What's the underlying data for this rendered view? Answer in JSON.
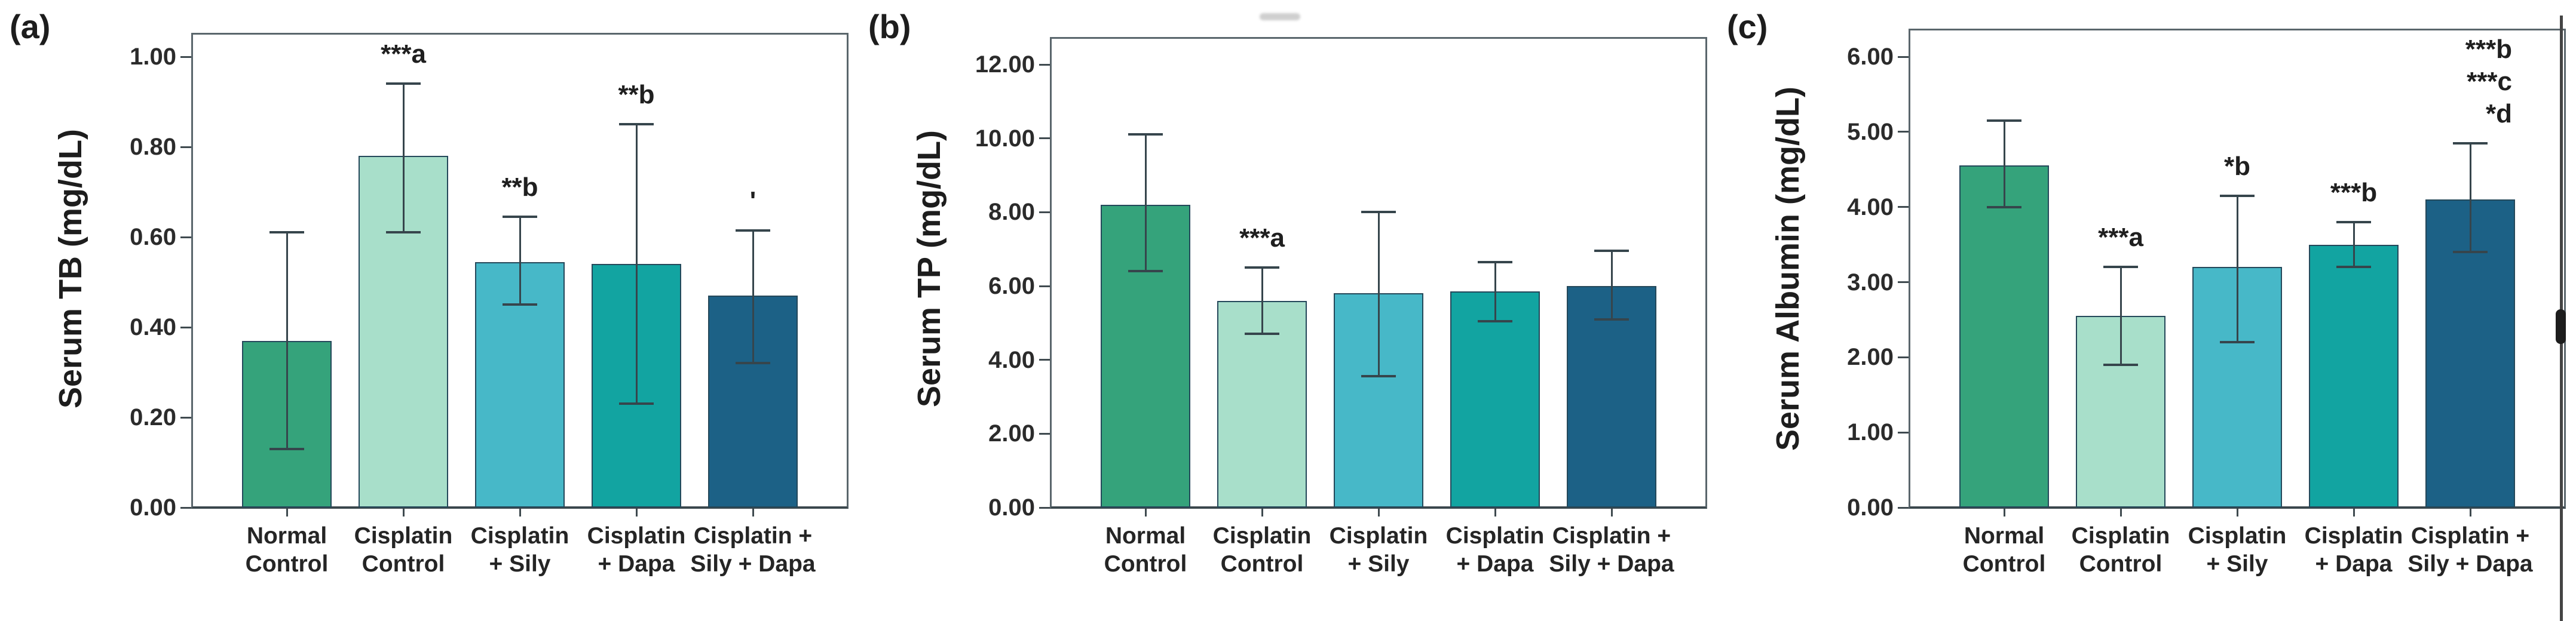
{
  "chart_data": [
    {
      "type": "bar",
      "letter": "(a)",
      "title": "",
      "ylabel": "Serum TB (mg/dL)",
      "xlabel": "",
      "ylim": [
        0,
        1.0
      ],
      "grid": false,
      "legend": null,
      "yticks": [
        "1.00",
        "0.80",
        "0.60",
        "0.40",
        "0.20",
        "0.00"
      ],
      "categories": [
        [
          "Normal",
          "Control"
        ],
        [
          "Cisplatin",
          "Control"
        ],
        [
          "Cisplatin",
          "+ Sily"
        ],
        [
          "Cisplatin",
          "+ Dapa"
        ],
        [
          "Cisplatin +",
          "Sily + Dapa"
        ]
      ],
      "values": [
        0.37,
        0.78,
        0.545,
        0.54,
        0.47
      ],
      "err_lo": [
        0.13,
        0.61,
        0.45,
        0.23,
        0.32
      ],
      "err_hi": [
        0.61,
        0.94,
        0.645,
        0.85,
        0.615
      ],
      "annotations": [
        [],
        [
          "***a"
        ],
        [
          "**b"
        ],
        [
          "**b"
        ],
        [
          "'"
        ]
      ],
      "colors": [
        "#35A37B",
        "#A8DFCA",
        "#47B8C8",
        "#12A4A1",
        "#1C6186"
      ]
    },
    {
      "type": "bar",
      "letter": "(b)",
      "title": "",
      "ylabel": "Serum TP (mg/dL)",
      "xlabel": "",
      "ylim": [
        0,
        12.0
      ],
      "grid": false,
      "legend": null,
      "yticks": [
        "12.00",
        "10.00",
        "8.00",
        "6.00",
        "4.00",
        "2.00",
        "0.00"
      ],
      "categories": [
        [
          "Normal",
          "Control"
        ],
        [
          "Cisplatin",
          "Control"
        ],
        [
          "Cisplatin",
          "+ Sily"
        ],
        [
          "Cisplatin",
          "+ Dapa"
        ],
        [
          "Cisplatin +",
          "Sily + Dapa"
        ]
      ],
      "values": [
        8.2,
        5.6,
        5.8,
        5.85,
        6.0
      ],
      "err_lo": [
        6.4,
        4.7,
        3.55,
        5.05,
        5.1
      ],
      "err_hi": [
        10.1,
        6.5,
        8.0,
        6.65,
        6.95
      ],
      "annotations": [
        [],
        [
          "***a"
        ],
        [],
        [],
        []
      ],
      "colors": [
        "#35A37B",
        "#A8DFCA",
        "#47B8C8",
        "#12A4A1",
        "#1C6186"
      ]
    },
    {
      "type": "bar",
      "letter": "(c)",
      "title": "",
      "ylabel": "Serum Albumin (mg/dL)",
      "xlabel": "",
      "ylim": [
        0,
        6.0
      ],
      "grid": false,
      "legend": null,
      "yticks": [
        "6.00",
        "5.00",
        "4.00",
        "3.00",
        "2.00",
        "1.00",
        "0.00"
      ],
      "categories": [
        [
          "Normal",
          "Control"
        ],
        [
          "Cisplatin",
          "Control"
        ],
        [
          "Cisplatin",
          "+ Sily"
        ],
        [
          "Cisplatin",
          "+ Dapa"
        ],
        [
          "Cisplatin +",
          "Sily + Dapa"
        ]
      ],
      "values": [
        4.55,
        2.55,
        3.2,
        3.5,
        4.1
      ],
      "err_lo": [
        4.0,
        1.9,
        2.2,
        3.2,
        3.4
      ],
      "err_hi": [
        5.15,
        3.2,
        4.15,
        3.8,
        4.85
      ],
      "annotations": [
        [],
        [
          "***a"
        ],
        [
          "*b"
        ],
        [
          "***b"
        ],
        [
          "***b",
          "***c",
          "*d"
        ]
      ],
      "colors": [
        "#35A37B",
        "#A8DFCA",
        "#47B8C8",
        "#12A4A1",
        "#1C6186"
      ]
    }
  ]
}
